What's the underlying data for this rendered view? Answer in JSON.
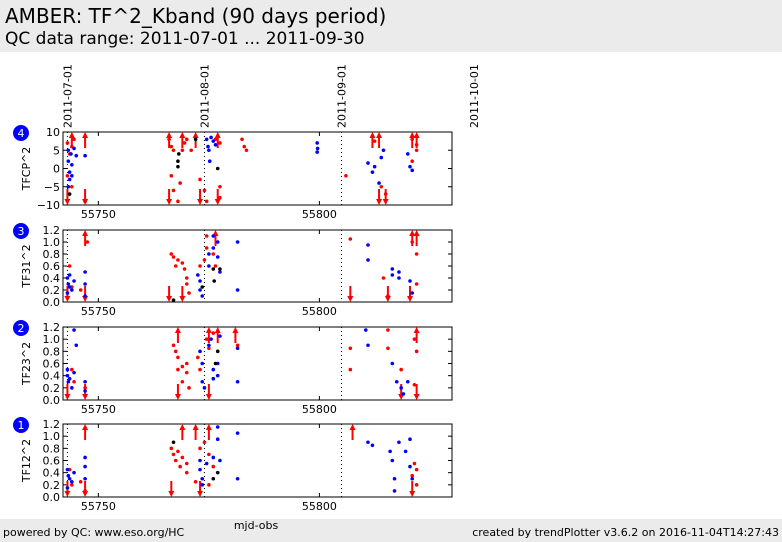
{
  "header": {
    "title": "AMBER: TF^2_Kband (90 days period)",
    "subtitle": "QC data range: 2011-07-01 ... 2011-09-30"
  },
  "footer": {
    "left": "powered by QC: www.eso.org/HC",
    "right": "created by trendPlotter v3.6.2 on 2016-11-04T14:27:43"
  },
  "colors": {
    "blue": "#0000ff",
    "red": "#ff0000",
    "black": "#000000",
    "badge": "#0000ff"
  },
  "chart_data": {
    "type": "scatter",
    "xlabel": "mjd-obs",
    "xlim": [
      55742,
      55830
    ],
    "xticks": [
      55750,
      55800
    ],
    "date_markers": [
      {
        "label": "2011-07-01",
        "x": 55743
      },
      {
        "label": "2011-08-01",
        "x": 55774
      },
      {
        "label": "2011-09-01",
        "x": 55805
      },
      {
        "label": "2011-10-01",
        "x": 55835
      }
    ],
    "panels": [
      {
        "badge": "4",
        "ylabel": "TFCP^2",
        "ylim": [
          -10,
          10
        ],
        "yticks": [
          10,
          5,
          0,
          -5,
          -10
        ],
        "ytick_labels": [
          "10",
          "5",
          "0",
          "−5",
          "−10"
        ],
        "blue": [
          [
            55743.2,
            5
          ],
          [
            55743.2,
            2
          ],
          [
            55743.5,
            -1
          ],
          [
            55743.5,
            -3
          ],
          [
            55743.2,
            -5
          ],
          [
            55743.8,
            4
          ],
          [
            55744,
            1
          ],
          [
            55744,
            -2
          ],
          [
            55744.5,
            5.5
          ],
          [
            55745,
            3.5
          ],
          [
            55747,
            3.5
          ],
          [
            55774.5,
            8
          ],
          [
            55774.8,
            6
          ],
          [
            55775,
            5
          ],
          [
            55775.2,
            2
          ],
          [
            55775.5,
            8.5
          ],
          [
            55776,
            7.5
          ],
          [
            55776.5,
            6.5
          ],
          [
            55799.5,
            7
          ],
          [
            55799.6,
            5.5
          ],
          [
            55799.5,
            4.5
          ],
          [
            55811,
            1.5
          ],
          [
            55812,
            -1
          ],
          [
            55812.5,
            0.5
          ],
          [
            55813.5,
            -4
          ],
          [
            55814,
            3
          ],
          [
            55814.5,
            5
          ],
          [
            55820,
            4
          ],
          [
            55820.5,
            0.5
          ],
          [
            55821,
            -0.5
          ]
        ],
        "black": [
          [
            55743.5,
            -7
          ],
          [
            55768,
            0.5
          ],
          [
            55768,
            2
          ],
          [
            55768.2,
            4
          ],
          [
            55772,
            8
          ],
          [
            55777,
            0
          ]
        ],
        "red": [
          [
            55743,
            7
          ],
          [
            55743.5,
            4
          ],
          [
            55744,
            6
          ],
          [
            55744.5,
            8
          ],
          [
            55743,
            -2
          ],
          [
            55744,
            -5
          ],
          [
            55747,
            -9
          ],
          [
            55766,
            8
          ],
          [
            55766.5,
            6
          ],
          [
            55767,
            5
          ],
          [
            55766.5,
            -2
          ],
          [
            55767,
            -6
          ],
          [
            55768,
            -9
          ],
          [
            55769,
            5
          ],
          [
            55769.5,
            7
          ],
          [
            55770,
            8
          ],
          [
            55771,
            5
          ],
          [
            55768.5,
            -4
          ],
          [
            55773,
            -3
          ],
          [
            55774,
            -6
          ],
          [
            55774.5,
            -9
          ],
          [
            55776.5,
            8
          ],
          [
            55777.5,
            7
          ],
          [
            55777.5,
            -5
          ],
          [
            55777.5,
            -8
          ],
          [
            55782.5,
            8
          ],
          [
            55783,
            6
          ],
          [
            55783.5,
            5
          ],
          [
            55806,
            -2
          ],
          [
            55812.5,
            7.5
          ],
          [
            55814,
            -5
          ],
          [
            55815,
            -7
          ],
          [
            55821,
            8
          ],
          [
            55822,
            6.5
          ],
          [
            55821,
            2
          ],
          [
            55822,
            5
          ]
        ],
        "red_up": [
          55744,
          55747,
          55766,
          55769,
          55772,
          55777,
          55812,
          55813.5,
          55821,
          55822
        ],
        "red_down": [
          55743,
          55747,
          55766,
          55773,
          55777,
          55813.5,
          55815
        ]
      },
      {
        "badge": "3",
        "ylabel": "TF31^2",
        "ylim": [
          0,
          1.2
        ],
        "yticks": [
          1.2,
          1.0,
          0.8,
          0.6,
          0.4,
          0.2,
          0.0
        ],
        "ytick_labels": [
          "1.2",
          "1.0",
          "0.8",
          "0.6",
          "0.4",
          "0.2",
          "0.0"
        ],
        "blue": [
          [
            55743,
            0.4
          ],
          [
            55743.2,
            0.3
          ],
          [
            55743.5,
            0.25
          ],
          [
            55744,
            0.2
          ],
          [
            55743,
            0.15
          ],
          [
            55743.5,
            0.45
          ],
          [
            55744.5,
            0.35
          ],
          [
            55747,
            0.5
          ],
          [
            55747,
            0.3
          ],
          [
            55747,
            0.1
          ],
          [
            55772.5,
            0.45
          ],
          [
            55773,
            0.35
          ],
          [
            55773,
            0.2
          ],
          [
            55773.5,
            0.1
          ],
          [
            55775,
            0.6
          ],
          [
            55775,
            0.8
          ],
          [
            55776,
            0.9
          ],
          [
            55776,
            1.1
          ],
          [
            55777,
            1.0
          ],
          [
            55777,
            0.75
          ],
          [
            55777.5,
            0.5
          ],
          [
            55781.5,
            1.0
          ],
          [
            55781.5,
            0.2
          ],
          [
            55811,
            0.95
          ],
          [
            55811,
            0.7
          ],
          [
            55816.5,
            0.55
          ],
          [
            55816.5,
            0.45
          ],
          [
            55818,
            0.5
          ],
          [
            55818,
            0.4
          ],
          [
            55820.5,
            0.35
          ],
          [
            55821,
            0.15
          ]
        ],
        "black": [
          [
            55767,
            0.03
          ],
          [
            55773.5,
            0.25
          ],
          [
            55776,
            0.55
          ],
          [
            55776.2,
            0.35
          ],
          [
            55777.5,
            0.55
          ]
        ],
        "red": [
          [
            55743.5,
            0.6
          ],
          [
            55744,
            0.25
          ],
          [
            55746,
            0.2
          ],
          [
            55747.5,
            1.0
          ],
          [
            55766.5,
            0.8
          ],
          [
            55767,
            0.75
          ],
          [
            55767.5,
            0.6
          ],
          [
            55768,
            0.7
          ],
          [
            55769,
            0.65
          ],
          [
            55769.5,
            0.55
          ],
          [
            55770,
            0.4
          ],
          [
            55770,
            0.3
          ],
          [
            55770.5,
            0.15
          ],
          [
            55773,
            0.6
          ],
          [
            55774,
            0.7
          ],
          [
            55774.5,
            0.9
          ],
          [
            55774.5,
            1.1
          ],
          [
            55776,
            0.8
          ],
          [
            55776.5,
            0.6
          ],
          [
            55807,
            1.05
          ],
          [
            55814.5,
            0.4
          ],
          [
            55815.5,
            0.1
          ],
          [
            55821,
            1.0
          ],
          [
            55822,
            0.8
          ],
          [
            55822,
            0.3
          ]
        ],
        "red_up": [
          55747,
          55776.5,
          55821,
          55822
        ],
        "red_down": [
          55743,
          55747,
          55766,
          55769,
          55807,
          55815.5,
          55820.5
        ]
      },
      {
        "badge": "2",
        "ylabel": "TF23^2",
        "ylim": [
          0,
          1.2
        ],
        "yticks": [
          1.2,
          1.0,
          0.8,
          0.6,
          0.4,
          0.2,
          0.0
        ],
        "ytick_labels": [
          "1.2",
          "1.0",
          "0.8",
          "0.6",
          "0.4",
          "0.2",
          "0.0"
        ],
        "blue": [
          [
            55743,
            0.4
          ],
          [
            55743.2,
            0.3
          ],
          [
            55743.5,
            0.35
          ],
          [
            55744,
            0.2
          ],
          [
            55744.5,
            0.45
          ],
          [
            55743,
            0.5
          ],
          [
            55744.5,
            1.15
          ],
          [
            55745,
            0.9
          ],
          [
            55747,
            0.3
          ],
          [
            55747,
            0.15
          ],
          [
            55773,
            0.8
          ],
          [
            55773.5,
            0.6
          ],
          [
            55773.5,
            0.3
          ],
          [
            55774,
            0.2
          ],
          [
            55775,
            0.9
          ],
          [
            55775.5,
            1.0
          ],
          [
            55776,
            0.5
          ],
          [
            55776,
            0.35
          ],
          [
            55777,
            0.6
          ],
          [
            55777,
            0.4
          ],
          [
            55777.5,
            1.05
          ],
          [
            55781.5,
            0.85
          ],
          [
            55781.5,
            0.3
          ],
          [
            55810.5,
            1.15
          ],
          [
            55811,
            0.9
          ],
          [
            55816.5,
            0.6
          ],
          [
            55817.5,
            0.3
          ],
          [
            55818.5,
            0.2
          ],
          [
            55819,
            0.1
          ],
          [
            55820,
            0.3
          ]
        ],
        "black": [
          [
            55776.5,
            0.6
          ],
          [
            55777,
            0.8
          ]
        ],
        "red": [
          [
            55744,
            0.5
          ],
          [
            55744.5,
            0.3
          ],
          [
            55747,
            0.2
          ],
          [
            55767,
            0.9
          ],
          [
            55767.5,
            0.8
          ],
          [
            55768,
            0.7
          ],
          [
            55768,
            0.5
          ],
          [
            55769,
            0.55
          ],
          [
            55769,
            0.3
          ],
          [
            55770,
            0.6
          ],
          [
            55770,
            0.45
          ],
          [
            55770.5,
            0.2
          ],
          [
            55772.5,
            0.7
          ],
          [
            55773,
            0.5
          ],
          [
            55774.5,
            1.0
          ],
          [
            55775,
            0.85
          ],
          [
            55776,
            1.1
          ],
          [
            55781.5,
            0.9
          ],
          [
            55807,
            0.85
          ],
          [
            55807,
            0.5
          ],
          [
            55815.5,
            1.15
          ],
          [
            55815.5,
            0.85
          ],
          [
            55818.5,
            0.5
          ],
          [
            55821.5,
            1.0
          ],
          [
            55822,
            0.8
          ],
          [
            55821.5,
            0.25
          ]
        ],
        "red_up": [
          55768,
          55775,
          55777,
          55781,
          55822
        ],
        "red_down": [
          55743,
          55747,
          55768,
          55775,
          55818.5,
          55822
        ]
      },
      {
        "badge": "1",
        "ylabel": "TF12^2",
        "ylim": [
          0,
          1.2
        ],
        "yticks": [
          1.2,
          1.0,
          0.8,
          0.6,
          0.4,
          0.2,
          0.0
        ],
        "ytick_labels": [
          "1.2",
          "1.0",
          "0.8",
          "0.6",
          "0.4",
          "0.2",
          "0.0"
        ],
        "blue": [
          [
            55743,
            0.45
          ],
          [
            55743.2,
            0.35
          ],
          [
            55743.5,
            0.3
          ],
          [
            55744,
            0.25
          ],
          [
            55743,
            0.15
          ],
          [
            55744.5,
            0.4
          ],
          [
            55747,
            0.65
          ],
          [
            55747,
            0.5
          ],
          [
            55747,
            0.3
          ],
          [
            55773,
            0.6
          ],
          [
            55773,
            0.45
          ],
          [
            55773.5,
            0.3
          ],
          [
            55773.5,
            0.2
          ],
          [
            55774.5,
            0.55
          ],
          [
            55776,
            0.65
          ],
          [
            55777,
            1.15
          ],
          [
            55777,
            0.95
          ],
          [
            55777.5,
            0.6
          ],
          [
            55781.5,
            1.05
          ],
          [
            55781.5,
            0.3
          ],
          [
            55811,
            0.9
          ],
          [
            55812,
            0.85
          ],
          [
            55816,
            0.75
          ],
          [
            55816.5,
            0.6
          ],
          [
            55817,
            0.3
          ],
          [
            55817,
            0.1
          ],
          [
            55818,
            0.9
          ],
          [
            55819.5,
            0.75
          ],
          [
            55820.5,
            0.95
          ],
          [
            55820.5,
            0.5
          ],
          [
            55821,
            0.3
          ]
        ],
        "black": [
          [
            55767,
            0.9
          ],
          [
            55776,
            0.3
          ],
          [
            55777,
            0.4
          ]
        ],
        "red": [
          [
            55743.5,
            0.45
          ],
          [
            55744,
            0.2
          ],
          [
            55746,
            0.25
          ],
          [
            55747,
            0.1
          ],
          [
            55766.5,
            0.8
          ],
          [
            55767,
            0.7
          ],
          [
            55767.5,
            0.6
          ],
          [
            55768,
            0.75
          ],
          [
            55768.5,
            0.5
          ],
          [
            55769,
            0.65
          ],
          [
            55770,
            0.55
          ],
          [
            55770,
            0.4
          ],
          [
            55772,
            0.25
          ],
          [
            55773,
            0.8
          ],
          [
            55774,
            0.9
          ],
          [
            55775,
            0.7
          ],
          [
            55775,
            0.2
          ],
          [
            55776,
            0.5
          ],
          [
            55821,
            0.35
          ],
          [
            55821.5,
            0.55
          ],
          [
            55822,
            0.2
          ],
          [
            55822,
            0.45
          ]
        ],
        "red_up": [
          55747,
          55769,
          55772,
          55775,
          55807.5
        ],
        "red_down": [
          55743,
          55747,
          55766.5,
          55773,
          55821
        ]
      }
    ]
  }
}
